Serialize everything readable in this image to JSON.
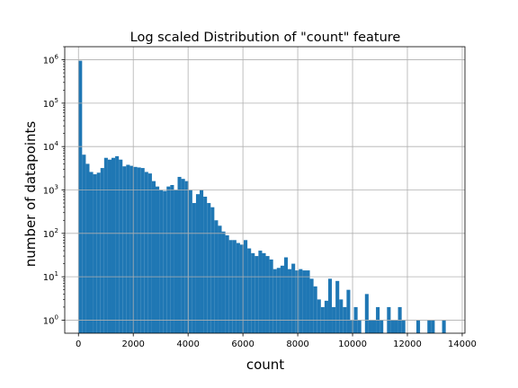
{
  "chart_data": {
    "type": "bar",
    "title": "Log scaled Distribution of \"count\" feature",
    "xlabel": "count",
    "ylabel": "number of datapoints",
    "xlim": [
      -500,
      14100
    ],
    "ylim": [
      0.5,
      2000000
    ],
    "yscale": "log",
    "grid": true,
    "bar_color": "#1f77b4",
    "bin_width": 134,
    "x_ticks": [
      0,
      2000,
      4000,
      6000,
      8000,
      10000,
      12000,
      14000
    ],
    "x_tick_labels": [
      "0",
      "2000",
      "4000",
      "6000",
      "8000",
      "10000",
      "12000",
      "14000"
    ],
    "y_ticks": [
      {
        "value": 1,
        "base": "10",
        "exp": "0"
      },
      {
        "value": 10,
        "base": "10",
        "exp": "1"
      },
      {
        "value": 100,
        "base": "10",
        "exp": "2"
      },
      {
        "value": 1000,
        "base": "10",
        "exp": "3"
      },
      {
        "value": 10000,
        "base": "10",
        "exp": "4"
      },
      {
        "value": 100000,
        "base": "10",
        "exp": "5"
      },
      {
        "value": 1000000,
        "base": "10",
        "exp": "6"
      }
    ],
    "bin_start": [
      0,
      134,
      268,
      402,
      536,
      670,
      804,
      938,
      1072,
      1206,
      1340,
      1474,
      1608,
      1742,
      1876,
      2010,
      2144,
      2278,
      2412,
      2546,
      2680,
      2814,
      2948,
      3082,
      3216,
      3350,
      3484,
      3618,
      3752,
      3886,
      4020,
      4154,
      4288,
      4422,
      4556,
      4690,
      4824,
      4958,
      5092,
      5226,
      5360,
      5494,
      5628,
      5762,
      5896,
      6030,
      6164,
      6298,
      6432,
      6566,
      6700,
      6834,
      6968,
      7102,
      7236,
      7370,
      7504,
      7638,
      7772,
      7906,
      8040,
      8174,
      8308,
      8442,
      8576,
      8710,
      8844,
      8978,
      9112,
      9246,
      9380,
      9514,
      9648,
      9782,
      9916,
      10050,
      10184,
      10318,
      10452,
      10586,
      10720,
      10854,
      10988,
      11122,
      11256,
      11390,
      11524,
      11658,
      11792,
      11926,
      12060,
      12194,
      12328,
      12462,
      12596,
      12730,
      12864,
      12998,
      13132,
      13266
    ],
    "values": [
      950000,
      6500,
      4000,
      2600,
      2300,
      2500,
      3200,
      5500,
      5000,
      5500,
      6000,
      5000,
      3500,
      3800,
      3600,
      3400,
      3300,
      3200,
      2600,
      2400,
      1600,
      1200,
      1000,
      950,
      1200,
      1300,
      1000,
      2000,
      1800,
      1600,
      1000,
      500,
      800,
      1000,
      700,
      500,
      400,
      200,
      150,
      110,
      90,
      70,
      70,
      60,
      55,
      70,
      45,
      35,
      30,
      40,
      35,
      30,
      25,
      15,
      16,
      18,
      28,
      15,
      20,
      14,
      15,
      14,
      14,
      9,
      6,
      3,
      2,
      2.8,
      9,
      2,
      8,
      3,
      2,
      5,
      1,
      2,
      1,
      0,
      4,
      1,
      1,
      2,
      1,
      0,
      2,
      1,
      1,
      2,
      1,
      0,
      0,
      0,
      1,
      0,
      0,
      1,
      1,
      0,
      0,
      1
    ]
  }
}
